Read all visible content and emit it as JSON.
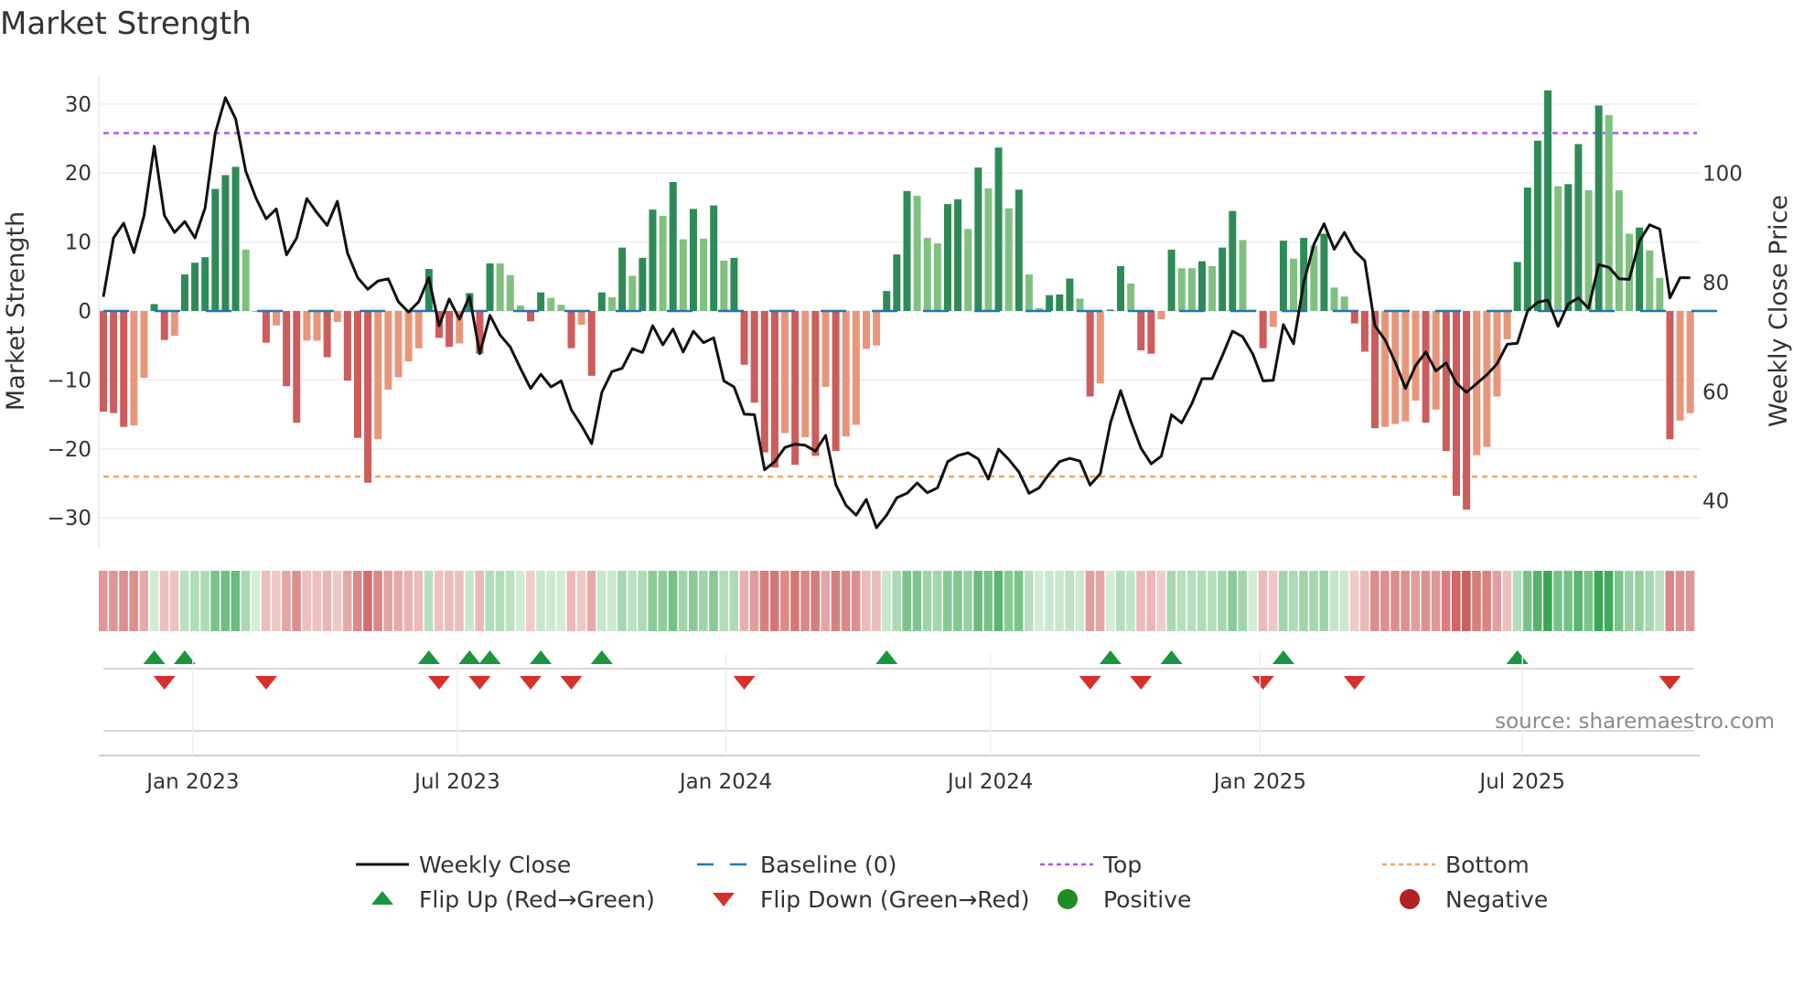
{
  "title": "Market Strength",
  "source": "source: sharemaestro.com",
  "chart_data": {
    "type": "bar",
    "title": "Market Strength",
    "ylabel": "Market Strength",
    "y2label": "Weekly Close Price",
    "ylim": [
      -37,
      36
    ],
    "y2lim": [
      33,
      120
    ],
    "yticks": [
      30,
      20,
      10,
      0,
      -10,
      -20,
      -30
    ],
    "ytick_labels": [
      "30",
      "20",
      "10",
      "0",
      "−10",
      "−20",
      "−30"
    ],
    "y2ticks": [
      100,
      80,
      60,
      40
    ],
    "y2tick_labels": [
      "100",
      "80",
      "60",
      "40"
    ],
    "top_level": 25.8,
    "bottom_level": -24.0,
    "baseline": 0,
    "xtick_labels": [
      "Jan 2023",
      "Jul 2023",
      "Jan 2024",
      "Jul 2024",
      "Jan 2025",
      "Jul 2025"
    ],
    "xtick_week_index": [
      8.8,
      34.8,
      61.2,
      87.2,
      113.7,
      139.5
    ],
    "strength": [
      -14.6,
      -14.8,
      -16.8,
      -16.6,
      -9.7,
      1.0,
      -4.2,
      -3.6,
      5.3,
      7.0,
      7.8,
      17.7,
      19.7,
      20.9,
      8.9,
      0,
      -4.6,
      -2.1,
      -10.9,
      -16.2,
      -4.3,
      -4.3,
      -6.7,
      -1.6,
      -10.1,
      -18.4,
      -24.9,
      -18.6,
      -11.4,
      -9.6,
      -7.3,
      -5.4,
      6.1,
      -3.9,
      -5.2,
      -4.7,
      2.6,
      -6.2,
      6.9,
      6.9,
      5.2,
      0.8,
      -1.5,
      2.7,
      1.9,
      0.9,
      -5.4,
      -2.0,
      -9.4,
      2.7,
      2.0,
      9.2,
      5.1,
      7.7,
      14.7,
      13.8,
      18.7,
      10.4,
      14.8,
      10.5,
      15.3,
      7.3,
      7.7,
      -7.8,
      -13.3,
      -20.5,
      -22.7,
      -17.7,
      -22.3,
      -18.3,
      -21.0,
      -11.0,
      -20.3,
      -18.2,
      -16.5,
      -5.5,
      -5.0,
      2.9,
      8.2,
      17.4,
      16.7,
      10.6,
      9.8,
      15.5,
      16.2,
      11.9,
      20.8,
      17.8,
      23.7,
      14.9,
      17.6,
      5.3,
      0.4,
      2.3,
      2.4,
      4.7,
      1.8,
      -12.4,
      -10.5,
      0.2,
      6.5,
      4.0,
      -5.7,
      -6.2,
      -1.2,
      8.9,
      6.2,
      6.2,
      7.2,
      6.5,
      9.2,
      14.5,
      10.3,
      0.2,
      -5.4,
      -2.3,
      10.2,
      7.6,
      10.6,
      9.5,
      11.2,
      3.4,
      2.1,
      -1.8,
      -5.9,
      -17.0,
      -16.8,
      -16.4,
      -16.0,
      -13.0,
      -16.2,
      -14.3,
      -20.3,
      -26.8,
      -28.8,
      -20.9,
      -19.7,
      -12.4,
      -4.1,
      7.1,
      17.9,
      24.7,
      32.0,
      18.1,
      18.4,
      24.2,
      17.5,
      29.8,
      28.4,
      17.5,
      11.2,
      12.1,
      8.8,
      4.8,
      -18.6,
      -15.9,
      -14.8
    ],
    "weekly_close": [
      77.4,
      88.2,
      90.9,
      85.5,
      92.3,
      105.0,
      92.3,
      89.2,
      91.2,
      88.2,
      93.7,
      107.4,
      113.9,
      110.0,
      100.4,
      95.5,
      91.7,
      93.5,
      85.1,
      88.2,
      95.4,
      92.8,
      90.5,
      94.9,
      85.4,
      80.9,
      78.8,
      80.3,
      80.7,
      76.5,
      74.6,
      76.5,
      80.9,
      72.1,
      77.0,
      73.3,
      77.5,
      67.0,
      74.0,
      70.4,
      68.2,
      64.3,
      60.6,
      63.2,
      60.9,
      62.0,
      56.7,
      53.8,
      50.5,
      59.9,
      63.7,
      64.3,
      67.9,
      67.2,
      72.1,
      68.6,
      71.5,
      67.3,
      71.1,
      69.0,
      69.9,
      62.0,
      60.9,
      55.9,
      55.8,
      45.7,
      47.2,
      49.8,
      50.4,
      50.2,
      49.1,
      52.0,
      43.0,
      39.2,
      37.4,
      40.3,
      35.1,
      37.4,
      40.6,
      41.4,
      43.3,
      41.5,
      42.4,
      47.2,
      48.3,
      48.8,
      47.7,
      44.0,
      49.5,
      47.6,
      45.3,
      41.4,
      42.4,
      45.0,
      47.2,
      47.8,
      47.3,
      42.9,
      45.0,
      54.3,
      60.2,
      54.6,
      49.7,
      46.8,
      48.2,
      55.8,
      54.3,
      57.8,
      62.4,
      62.4,
      66.6,
      71.1,
      70.1,
      66.9,
      62.0,
      62.1,
      72.3,
      68.8,
      80.0,
      87.0,
      90.8,
      86.1,
      89.2,
      85.8,
      84.0,
      72.1,
      69.5,
      65.4,
      60.6,
      64.8,
      67.3,
      63.8,
      65.3,
      61.6,
      59.9,
      61.5,
      63.1,
      65.1,
      68.7,
      68.9,
      74.8,
      76.4,
      76.8,
      72.0,
      76.1,
      77.2,
      75.3,
      83.3,
      82.8,
      80.7,
      80.6,
      87.6,
      90.6,
      89.8,
      77.2,
      80.9,
      80.9
    ],
    "flip_up_weeks": [
      5,
      8,
      32,
      36,
      38,
      43,
      49,
      77,
      99,
      105,
      116,
      139
    ],
    "flip_down_weeks": [
      6,
      16,
      33,
      37,
      42,
      46,
      63,
      97,
      102,
      114,
      123,
      154
    ],
    "colors": {
      "strong_positive": "#2e8b57",
      "weak_positive": "#80c080",
      "strong_negative": "#cd5c5c",
      "weak_negative": "#e8967a",
      "line": "#111111",
      "baseline": "#1f77b4",
      "top": "#a855f7",
      "bottom": "#f4a460",
      "flip_up": "#1a9641",
      "flip_down": "#d7302b",
      "positive": "#228b22",
      "negative": "#b22222"
    },
    "legend": [
      {
        "label": "Weekly Close",
        "kind": "line"
      },
      {
        "label": "Baseline (0)",
        "kind": "dash"
      },
      {
        "label": "Top",
        "kind": "dot-top"
      },
      {
        "label": "Bottom",
        "kind": "dot-bottom"
      },
      {
        "label": "Flip Up (Red→Green)",
        "kind": "tri-up"
      },
      {
        "label": "Flip Down (Green→Red)",
        "kind": "tri-down"
      },
      {
        "label": "Positive",
        "kind": "circle-pos"
      },
      {
        "label": "Negative",
        "kind": "circle-neg"
      }
    ],
    "legend_placement": "bottom"
  }
}
